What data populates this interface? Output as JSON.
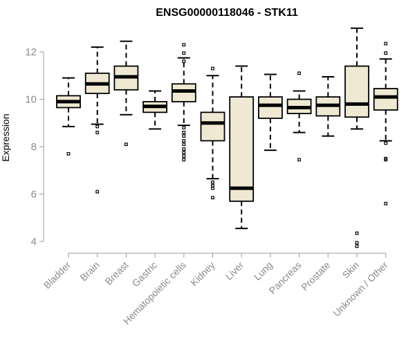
{
  "chart_data": {
    "type": "boxplot",
    "title": "ENSG00000118046 - STK11",
    "xlabel": "",
    "ylabel": "Expression",
    "ylim": [
      3.7,
      13.1
    ],
    "yticks": [
      4,
      6,
      8,
      10,
      12
    ],
    "yticklabels": [
      "4",
      "6",
      "8",
      "10",
      "12"
    ],
    "grid": false,
    "categories": [
      "Bladder",
      "Brain",
      "Breast",
      "Gastric",
      "Hematopoietic cells",
      "Kidney",
      "Liver",
      "Lung",
      "Pancreas",
      "Prostate",
      "Skin",
      "Unknown / Other"
    ],
    "boxes": [
      {
        "label": "Bladder",
        "whisker_low": 8.85,
        "q1": 9.65,
        "median": 9.9,
        "q3": 10.15,
        "whisker_high": 10.9,
        "outliers": [
          7.7
        ]
      },
      {
        "label": "Brain",
        "whisker_low": 8.95,
        "q1": 10.25,
        "median": 10.65,
        "q3": 11.1,
        "whisker_high": 12.2,
        "outliers": [
          8.85,
          8.6,
          6.1
        ]
      },
      {
        "label": "Breast",
        "whisker_low": 9.35,
        "q1": 10.4,
        "median": 10.95,
        "q3": 11.4,
        "whisker_high": 12.45,
        "outliers": [
          8.1
        ]
      },
      {
        "label": "Gastric",
        "whisker_low": 8.75,
        "q1": 9.45,
        "median": 9.7,
        "q3": 9.9,
        "whisker_high": 10.35,
        "outliers": []
      },
      {
        "label": "Hematopoietic cells",
        "whisker_low": 8.9,
        "q1": 9.9,
        "median": 10.35,
        "q3": 10.65,
        "whisker_high": 11.75,
        "outliers": [
          12.3,
          11.95,
          11.6,
          8.8,
          8.6,
          8.45,
          8.25,
          8.1,
          7.9,
          7.75,
          7.6,
          7.45
        ]
      },
      {
        "label": "Kidney",
        "whisker_low": 6.65,
        "q1": 8.25,
        "median": 9.0,
        "q3": 9.45,
        "whisker_high": 11.0,
        "outliers": [
          11.3,
          6.5,
          6.35,
          6.25,
          5.85
        ]
      },
      {
        "label": "Liver",
        "whisker_low": 4.55,
        "q1": 5.7,
        "median": 6.25,
        "q3": 10.1,
        "whisker_high": 11.4,
        "outliers": []
      },
      {
        "label": "Lung",
        "whisker_low": 7.85,
        "q1": 9.2,
        "median": 9.75,
        "q3": 10.1,
        "whisker_high": 11.05,
        "outliers": []
      },
      {
        "label": "Pancreas",
        "whisker_low": 8.6,
        "q1": 9.4,
        "median": 9.65,
        "q3": 10.0,
        "whisker_high": 10.35,
        "outliers": [
          11.1,
          7.45
        ]
      },
      {
        "label": "Prostate",
        "whisker_low": 8.45,
        "q1": 9.3,
        "median": 9.75,
        "q3": 10.1,
        "whisker_high": 10.95,
        "outliers": []
      },
      {
        "label": "Skin",
        "whisker_low": 8.75,
        "q1": 9.25,
        "median": 9.8,
        "q3": 11.4,
        "whisker_high": 13.0,
        "outliers": [
          4.35,
          3.95,
          3.8
        ]
      },
      {
        "label": "Unknown / Other",
        "whisker_low": 8.25,
        "q1": 9.55,
        "median": 10.1,
        "q3": 10.45,
        "whisker_high": 11.7,
        "outliers": [
          12.35,
          11.95,
          8.15,
          7.5,
          7.45,
          5.6
        ]
      }
    ],
    "colors": {
      "box_fill": "#efe8d2",
      "box_stroke": "#000000",
      "median": "#000000",
      "axis": "#999999",
      "tick_label": "#8a8a8a",
      "title": "#000000"
    }
  }
}
